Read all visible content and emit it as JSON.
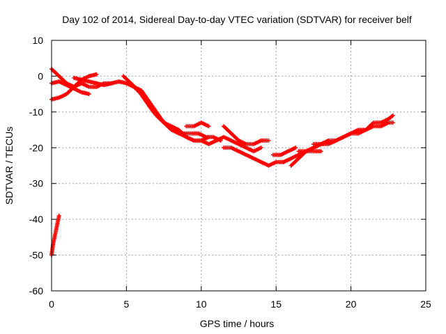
{
  "chart_data": {
    "type": "scatter",
    "title": "Day 102 of 2014, Sidereal Day-to-day VTEC variation (SDTVAR) for receiver belf",
    "xlabel": "GPS time / hours",
    "ylabel": "SDTVAR / TECUs",
    "xlim": [
      0,
      25
    ],
    "ylim": [
      -60,
      10
    ],
    "xticks": [
      "0",
      "5",
      "10",
      "15",
      "20",
      "25"
    ],
    "yticks": [
      "10",
      "0",
      "-10",
      "-20",
      "-30",
      "-40",
      "-50",
      "-60"
    ],
    "grid": true,
    "marker": "plus",
    "series": [
      {
        "name": "SDTVAR",
        "color": "#ff0000",
        "tracks": [
          {
            "x": [
              0.0,
              0.1,
              0.2,
              0.3,
              0.4,
              0.5
            ],
            "y": [
              -50,
              -47,
              -45,
              -43,
              -41,
              -39
            ]
          },
          {
            "x": [
              0.0,
              0.5,
              1.0,
              1.5,
              2.0,
              2.5,
              3.0,
              3.5,
              4.0
            ],
            "y": [
              2,
              0,
              -2,
              -3,
              -2,
              -3,
              -3,
              -2,
              -2
            ]
          },
          {
            "x": [
              0.0,
              0.5,
              1.0,
              1.5,
              2.0,
              2.5
            ],
            "y": [
              -2,
              -1.5,
              -2.5,
              -3.5,
              -4.5,
              -5
            ]
          },
          {
            "x": [
              0.0,
              0.5,
              1.0,
              1.5,
              2.0,
              2.5,
              3.0
            ],
            "y": [
              -6.5,
              -6,
              -5,
              -3,
              -1,
              0,
              0.5
            ]
          },
          {
            "x": [
              1.5,
              2.0,
              2.5,
              3.0,
              3.5,
              4.0,
              4.5,
              5.0,
              5.5,
              6.0,
              6.5,
              7.0,
              7.5,
              8.0,
              8.5,
              9.0,
              9.5,
              10.0,
              10.5
            ],
            "y": [
              -0.5,
              -1,
              -1.5,
              -2,
              -2.5,
              -2,
              -1.5,
              -2,
              -3,
              -5,
              -8,
              -11,
              -13,
              -14,
              -15,
              -17,
              -18,
              -18,
              -17
            ]
          },
          {
            "x": [
              4.8,
              5.3,
              5.8,
              6.3,
              6.8,
              7.3,
              7.8,
              8.3,
              8.8,
              9.3,
              9.8,
              10.3,
              10.8,
              11.3
            ],
            "y": [
              0,
              -2,
              -4,
              -7,
              -10,
              -12,
              -14,
              -15,
              -16,
              -16,
              -16,
              -17,
              -17,
              -18
            ]
          },
          {
            "x": [
              5.5,
              6.0,
              6.5,
              7.0,
              7.5,
              8.0,
              8.5,
              9.0,
              9.5,
              10.0,
              10.5,
              11.0,
              11.5,
              12.0,
              12.5,
              13.0,
              13.5,
              14.0
            ],
            "y": [
              -3,
              -4,
              -7,
              -10,
              -13,
              -15,
              -16,
              -17,
              -18,
              -18,
              -19,
              -18,
              -17,
              -18,
              -19,
              -20,
              -21,
              -20
            ]
          },
          {
            "x": [
              9.0,
              9.5,
              10.0,
              10.5
            ],
            "y": [
              -14,
              -14,
              -13,
              -14
            ]
          },
          {
            "x": [
              11.5,
              12.0,
              12.5,
              13.0,
              13.5,
              14.0,
              14.5
            ],
            "y": [
              -14,
              -16,
              -18,
              -19,
              -19,
              -18,
              -18
            ]
          },
          {
            "x": [
              11.5,
              12.0,
              12.5,
              13.0,
              13.5,
              14.0,
              14.5,
              15.0,
              15.5
            ],
            "y": [
              -20,
              -20,
              -21,
              -22,
              -23,
              -24,
              -25,
              -24,
              -24
            ]
          },
          {
            "x": [
              14.8,
              15.3,
              15.8,
              16.3
            ],
            "y": [
              -22,
              -22,
              -21,
              -20
            ]
          },
          {
            "x": [
              15.5,
              16.0,
              16.5,
              17.0,
              17.5,
              18.0
            ],
            "y": [
              -24,
              -23,
              -22,
              -21,
              -21,
              -21
            ]
          },
          {
            "x": [
              16.0,
              16.5,
              17.0,
              17.5,
              18.0,
              18.5
            ],
            "y": [
              -25,
              -23,
              -21,
              -20,
              -19,
              -18
            ]
          },
          {
            "x": [
              16.5,
              17.0,
              17.5,
              18.0,
              18.5,
              19.0,
              19.5,
              20.0,
              20.5,
              21.0,
              21.5,
              22.0,
              22.5,
              22.8
            ],
            "y": [
              -21,
              -21,
              -20,
              -19,
              -19,
              -18,
              -17,
              -16,
              -15,
              -15,
              -14,
              -14,
              -13,
              -13
            ]
          },
          {
            "x": [
              17.5,
              18.0,
              18.5,
              19.0,
              19.5,
              20.0,
              20.5,
              21.0,
              21.5,
              22.0,
              22.5,
              22.8
            ],
            "y": [
              -19,
              -19,
              -18,
              -18,
              -17,
              -16,
              -16,
              -15,
              -13,
              -13,
              -12,
              -11
            ]
          }
        ]
      }
    ]
  }
}
